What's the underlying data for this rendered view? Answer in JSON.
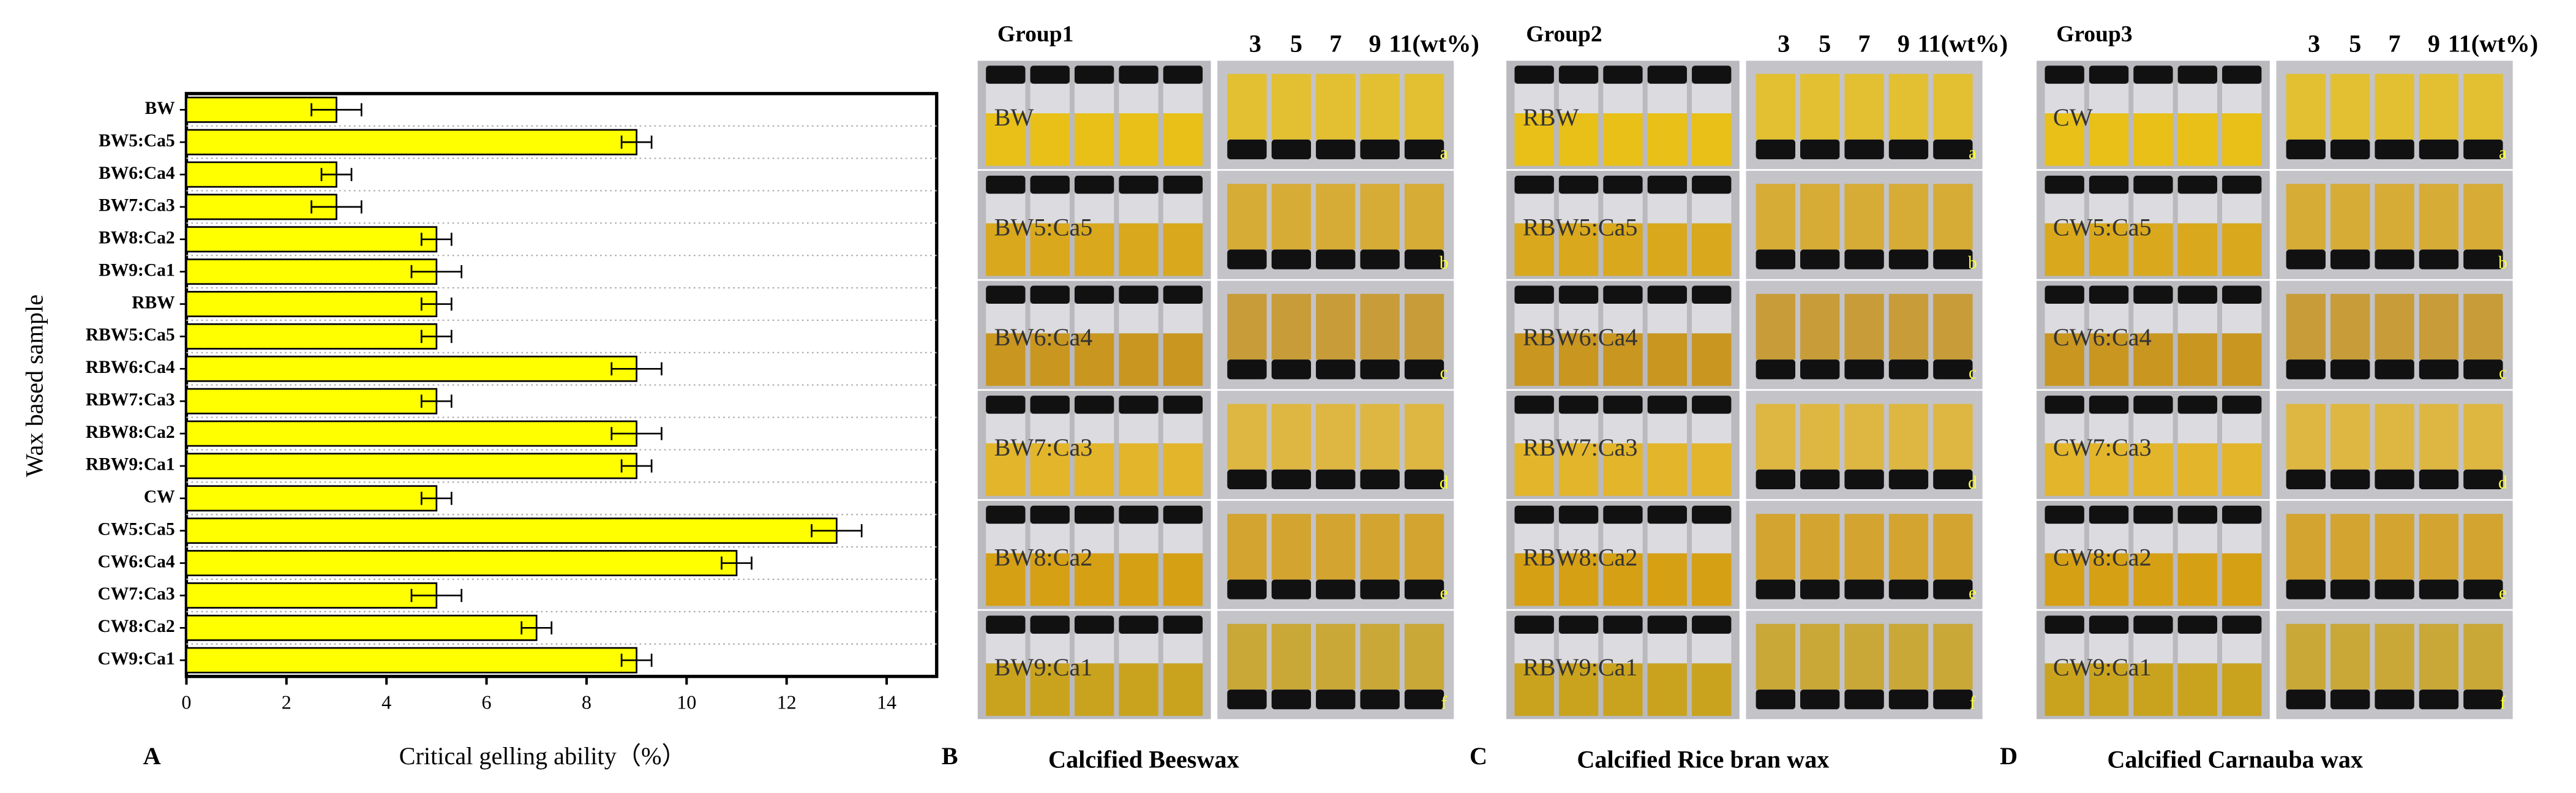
{
  "chart_data": {
    "type": "hbar",
    "panel_letter": "A",
    "x_label": "Critical gelling ability（%）",
    "y_label": "Wax based sample",
    "categories": [
      "BW",
      "BW5:Ca5",
      "BW6:Ca4",
      "BW7:Ca3",
      "BW8:Ca2",
      "BW9:Ca1",
      "RBW",
      "RBW5:Ca5",
      "RBW6:Ca4",
      "RBW7:Ca3",
      "RBW8:Ca2",
      "RBW9:Ca1",
      "CW",
      "CW5:Ca5",
      "CW6:Ca4",
      "CW7:Ca3",
      "CW8:Ca2",
      "CW9:Ca1"
    ],
    "values": [
      3,
      9,
      3,
      3,
      5,
      5,
      5,
      5,
      9,
      5,
      9,
      9,
      5,
      13,
      11,
      5,
      7,
      9
    ],
    "errors": [
      0.5,
      0.3,
      0.3,
      0.5,
      0.3,
      0.5,
      0.3,
      0.3,
      0.5,
      0.3,
      0.5,
      0.3,
      0.3,
      0.5,
      0.3,
      0.5,
      0.3,
      0.3
    ],
    "color": "#ffff00",
    "xlim": [
      0,
      15
    ],
    "xticks": [
      0,
      2,
      4,
      6,
      8,
      10,
      12,
      14
    ]
  },
  "panels": [
    {
      "letter": "B",
      "group": "Group1",
      "concentrations": [
        "3",
        "5",
        "7",
        "9",
        "11(wt%)"
      ],
      "caption": "Calcified Beeswax",
      "rows": [
        {
          "label": "BW",
          "tag": "a"
        },
        {
          "label": "BW5:Ca5",
          "tag": "b"
        },
        {
          "label": "BW6:Ca4",
          "tag": "c"
        },
        {
          "label": "BW7:Ca3",
          "tag": "d"
        },
        {
          "label": "BW8:Ca2",
          "tag": "e"
        },
        {
          "label": "BW9:Ca1",
          "tag": "f"
        }
      ]
    },
    {
      "letter": "C",
      "group": "Group2",
      "concentrations": [
        "3",
        "5",
        "7",
        "9",
        "11(wt%)"
      ],
      "caption": "Calcified Rice bran wax",
      "rows": [
        {
          "label": "RBW",
          "tag": "a"
        },
        {
          "label": "RBW5:Ca5",
          "tag": "b"
        },
        {
          "label": "RBW6:Ca4",
          "tag": "c"
        },
        {
          "label": "RBW7:Ca3",
          "tag": "d"
        },
        {
          "label": "RBW8:Ca2",
          "tag": "e"
        },
        {
          "label": "RBW9:Ca1",
          "tag": "f"
        }
      ]
    },
    {
      "letter": "D",
      "group": "Group3",
      "concentrations": [
        "3",
        "5",
        "7",
        "9",
        "11(wt%)"
      ],
      "caption": "Calcified Carnauba wax",
      "rows": [
        {
          "label": "CW",
          "tag": "a"
        },
        {
          "label": "CW5:Ca5",
          "tag": "b"
        },
        {
          "label": "CW6:Ca4",
          "tag": "c"
        },
        {
          "label": "CW7:Ca3",
          "tag": "d"
        },
        {
          "label": "CW8:Ca2",
          "tag": "e"
        },
        {
          "label": "CW9:Ca1",
          "tag": "f"
        }
      ]
    }
  ]
}
